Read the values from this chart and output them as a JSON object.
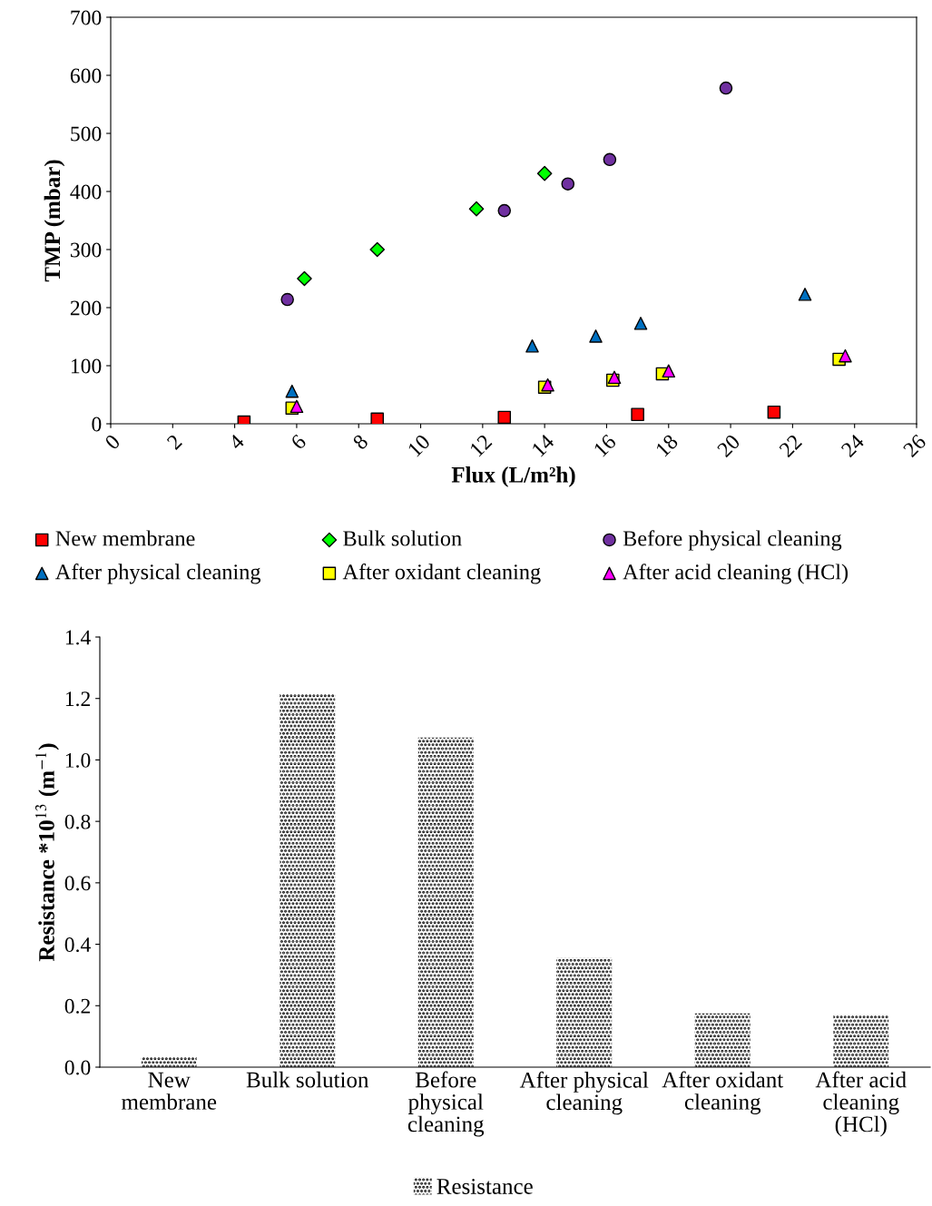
{
  "chart_data": [
    {
      "type": "scatter",
      "xlabel": "Flux (L/m²h)",
      "ylabel": "TMP (mbar)",
      "xlim": [
        0,
        26
      ],
      "xticks": [
        0,
        2,
        4,
        6,
        8,
        10,
        12,
        14,
        16,
        18,
        20,
        22,
        24,
        26
      ],
      "ylim": [
        0,
        700
      ],
      "yticks": [
        0,
        100,
        200,
        300,
        400,
        500,
        600,
        700
      ],
      "grid": false,
      "legend": "bottom",
      "series": [
        {
          "name": "New membrane",
          "color": "#ff0000",
          "marker": "square",
          "x": [
            4.3,
            8.6,
            12.7,
            17.0,
            21.4
          ],
          "values": [
            3,
            8,
            11,
            16,
            20
          ]
        },
        {
          "name": "Bulk solution",
          "color": "#00ff00",
          "marker": "diamond",
          "x": [
            6.25,
            8.6,
            11.8,
            14.0
          ],
          "values": [
            250,
            300,
            370,
            431
          ]
        },
        {
          "name": "Before physical cleaning",
          "color": "#7030a0",
          "marker": "circle",
          "x": [
            5.7,
            12.7,
            14.75,
            16.1,
            19.85
          ],
          "values": [
            214,
            367,
            413,
            455,
            578
          ]
        },
        {
          "name": "After physical cleaning",
          "color": "#0070c0",
          "marker": "triangle",
          "x": [
            5.85,
            13.6,
            15.65,
            17.1,
            22.4
          ],
          "values": [
            56,
            134,
            151,
            173,
            223
          ]
        },
        {
          "name": "After oxidant cleaning",
          "color": "#ffff00",
          "marker": "square",
          "x": [
            5.85,
            14.0,
            16.2,
            17.8,
            23.5
          ],
          "values": [
            27,
            63,
            75,
            86,
            111
          ]
        },
        {
          "name": "After acid cleaning (HCl)",
          "color": "#ff00ff",
          "marker": "triangle",
          "x": [
            6.0,
            14.1,
            16.25,
            18.0,
            23.7
          ],
          "values": [
            30,
            67,
            80,
            91,
            117
          ]
        }
      ]
    },
    {
      "type": "bar",
      "ylabel": "Resistance *10$^{13}$ (m$^{−1}$)",
      "categories": [
        "New\nmembrane",
        "Bulk solution",
        "Before\nphysical\ncleaning",
        "After physical\ncleaning",
        "After oxidant\ncleaning",
        "After acid\ncleaning\n(HCl)"
      ],
      "ylim": [
        0,
        1.4
      ],
      "yticks": [
        {
          "value": 0,
          "label": "0.0"
        },
        0.2,
        0.4,
        0.6,
        0.8,
        {
          "value": 1,
          "label": "1.0"
        },
        1.2,
        1.4
      ],
      "grid": false,
      "legend": "bottom",
      "series": [
        {
          "name": "Resistance",
          "color": "#000000",
          "values": [
            0.035,
            1.215,
            1.073,
            0.355,
            0.175,
            0.17
          ]
        }
      ]
    }
  ]
}
